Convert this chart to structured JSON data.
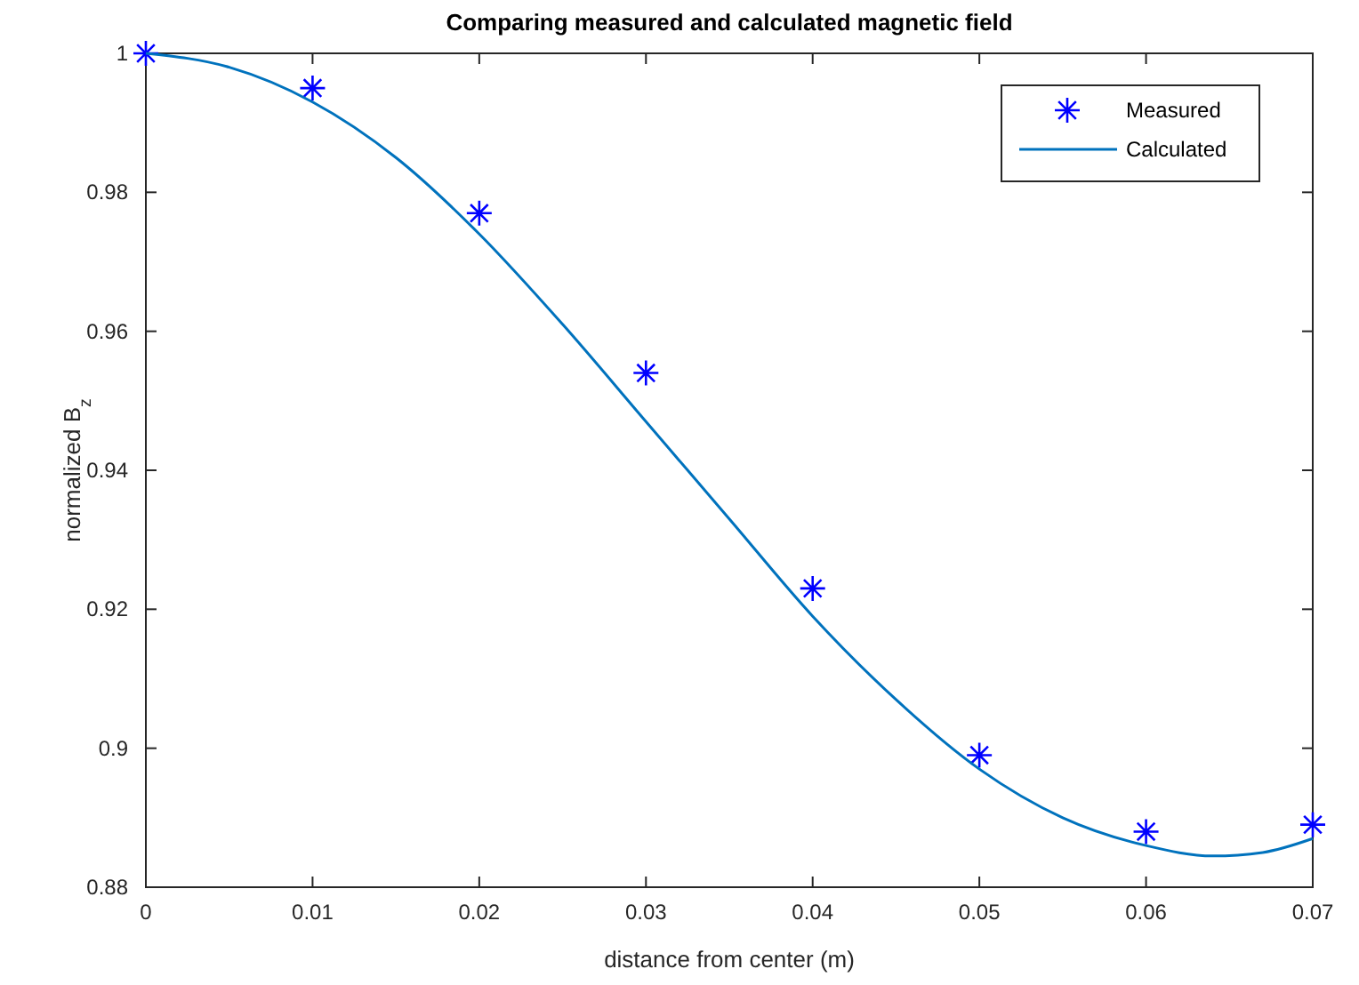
{
  "chart_data": {
    "type": "scatter",
    "title": "Comparing measured and calculated magnetic field",
    "xlabel": "distance from center (m)",
    "ylabel": "normalized B$_{z}$",
    "xlim": [
      0,
      0.07
    ],
    "xticks": [
      0,
      0.01,
      0.02,
      0.03,
      0.04,
      0.05,
      0.06,
      0.07
    ],
    "ylim": [
      0.88,
      1
    ],
    "yticks": [
      0.88,
      0.9,
      0.92,
      0.94,
      0.96,
      0.98,
      1
    ],
    "grid": false,
    "legend": "top right",
    "series": [
      {
        "name": "Measured",
        "marker": "cross",
        "color": "#0000ff",
        "x": [
          0,
          0.01,
          0.02,
          0.03,
          0.04,
          0.05,
          0.06,
          0.07
        ],
        "values": [
          1,
          0.995,
          0.977,
          0.954,
          0.923,
          0.899,
          0.888,
          0.889
        ]
      },
      {
        "name": "Calculated",
        "type": "line",
        "marker": "none",
        "line_style": "solid",
        "color": "#0072bd",
        "x": [
          0,
          0.005,
          0.01,
          0.015,
          0.02,
          0.025,
          0.03,
          0.035,
          0.04,
          0.045,
          0.05,
          0.055,
          0.06,
          0.064,
          0.067,
          0.07
        ],
        "values": [
          1,
          0.998,
          0.993,
          0.985,
          0.974,
          0.961,
          0.947,
          0.933,
          0.919,
          0.907,
          0.897,
          0.89,
          0.886,
          0.8845,
          0.885,
          0.887
        ]
      }
    ]
  }
}
